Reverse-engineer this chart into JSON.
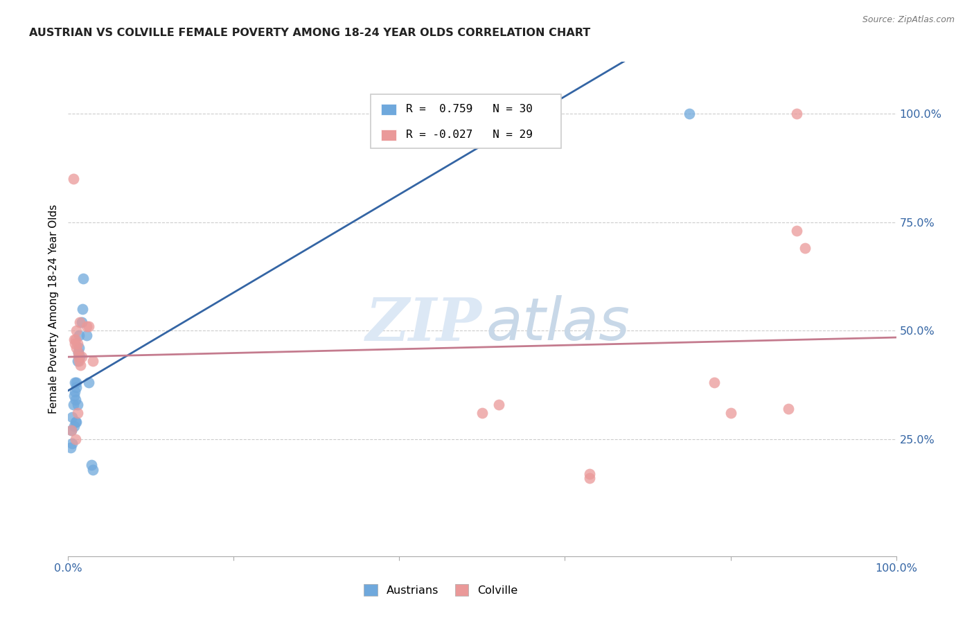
{
  "title": "AUSTRIAN VS COLVILLE FEMALE POVERTY AMONG 18-24 YEAR OLDS CORRELATION CHART",
  "source": "Source: ZipAtlas.com",
  "ylabel": "Female Poverty Among 18-24 Year Olds",
  "xlim": [
    0,
    1
  ],
  "ylim": [
    -0.02,
    1.12
  ],
  "background_color": "#ffffff",
  "grid_color": "#cccccc",
  "austrians_R": 0.759,
  "austrians_N": 30,
  "colville_R": -0.027,
  "colville_N": 29,
  "austrians_color": "#6fa8dc",
  "colville_color": "#ea9999",
  "austrians_line_color": "#3465a4",
  "colville_line_color": "#c47b8e",
  "legend_austrians_label": "Austrians",
  "legend_colville_label": "Colville",
  "austrians_x": [
    0.003,
    0.004,
    0.005,
    0.005,
    0.006,
    0.007,
    0.007,
    0.008,
    0.008,
    0.009,
    0.009,
    0.01,
    0.01,
    0.01,
    0.011,
    0.011,
    0.012,
    0.013,
    0.013,
    0.014,
    0.016,
    0.017,
    0.018,
    0.022,
    0.025,
    0.028,
    0.03,
    0.38,
    0.38,
    0.75
  ],
  "austrians_y": [
    0.23,
    0.27,
    0.24,
    0.3,
    0.33,
    0.35,
    0.28,
    0.36,
    0.38,
    0.34,
    0.29,
    0.37,
    0.38,
    0.29,
    0.43,
    0.33,
    0.45,
    0.46,
    0.49,
    0.44,
    0.52,
    0.55,
    0.62,
    0.49,
    0.38,
    0.19,
    0.18,
    1.0,
    1.0,
    1.0
  ],
  "colville_x": [
    0.004,
    0.006,
    0.007,
    0.008,
    0.009,
    0.009,
    0.01,
    0.01,
    0.011,
    0.011,
    0.012,
    0.012,
    0.013,
    0.014,
    0.015,
    0.016,
    0.022,
    0.025,
    0.03,
    0.5,
    0.52,
    0.63,
    0.63,
    0.78,
    0.8,
    0.87,
    0.88,
    0.88,
    0.89
  ],
  "colville_y": [
    0.27,
    0.85,
    0.48,
    0.47,
    0.48,
    0.25,
    0.46,
    0.5,
    0.47,
    0.31,
    0.45,
    0.44,
    0.43,
    0.52,
    0.42,
    0.44,
    0.51,
    0.51,
    0.43,
    0.31,
    0.33,
    0.16,
    0.17,
    0.38,
    0.31,
    0.32,
    1.0,
    0.73,
    0.69
  ],
  "ytick_positions": [
    0.25,
    0.5,
    0.75,
    1.0
  ],
  "ytick_labels": [
    "25.0%",
    "50.0%",
    "75.0%",
    "100.0%"
  ],
  "xtick_positions": [
    0.0,
    1.0
  ],
  "xtick_labels": [
    "0.0%",
    "100.0%"
  ]
}
